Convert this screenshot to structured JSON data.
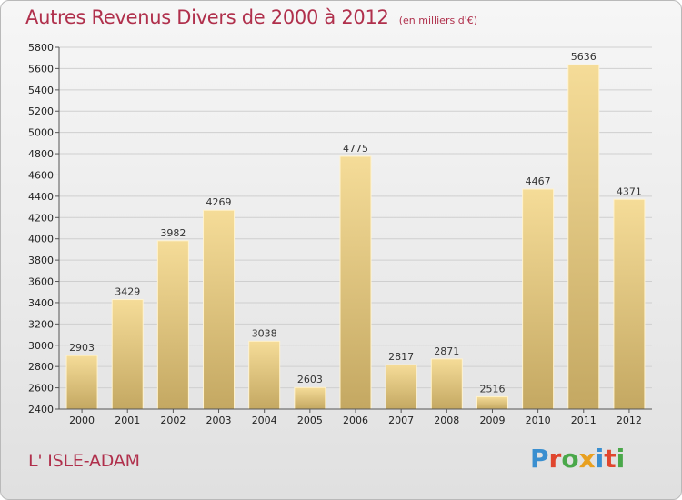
{
  "header": {
    "title": "Autres Revenus Divers de 2000 à 2012",
    "subtitle": "(en milliers d'€)"
  },
  "location": "L' ISLE-ADAM",
  "logo": {
    "text": "Proxiti",
    "letters": [
      {
        "ch": "P",
        "color": "#3a8fd0"
      },
      {
        "ch": "r",
        "color": "#e0462e"
      },
      {
        "ch": "o",
        "color": "#4aa84a"
      },
      {
        "ch": "x",
        "color": "#e8a020"
      },
      {
        "ch": "i",
        "color": "#3a8fd0"
      },
      {
        "ch": "t",
        "color": "#e0462e"
      },
      {
        "ch": "i",
        "color": "#4aa84a"
      }
    ]
  },
  "chart_data": {
    "type": "bar",
    "categories": [
      "2000",
      "2001",
      "2002",
      "2003",
      "2004",
      "2005",
      "2006",
      "2007",
      "2008",
      "2009",
      "2010",
      "2011",
      "2012"
    ],
    "values": [
      2903,
      3429,
      3982,
      4269,
      3038,
      2603,
      4775,
      2817,
      2871,
      2516,
      4467,
      5636,
      4371
    ],
    "ylim": [
      2400,
      5800
    ],
    "yticks": [
      2400,
      2600,
      2800,
      3000,
      3200,
      3400,
      3600,
      3800,
      4000,
      4200,
      4400,
      4600,
      4800,
      5000,
      5200,
      5400,
      5600,
      5800
    ],
    "grid": true,
    "legend": "none",
    "bar_color_top": "#f5dc98",
    "bar_color_bottom": "#c4a862"
  }
}
